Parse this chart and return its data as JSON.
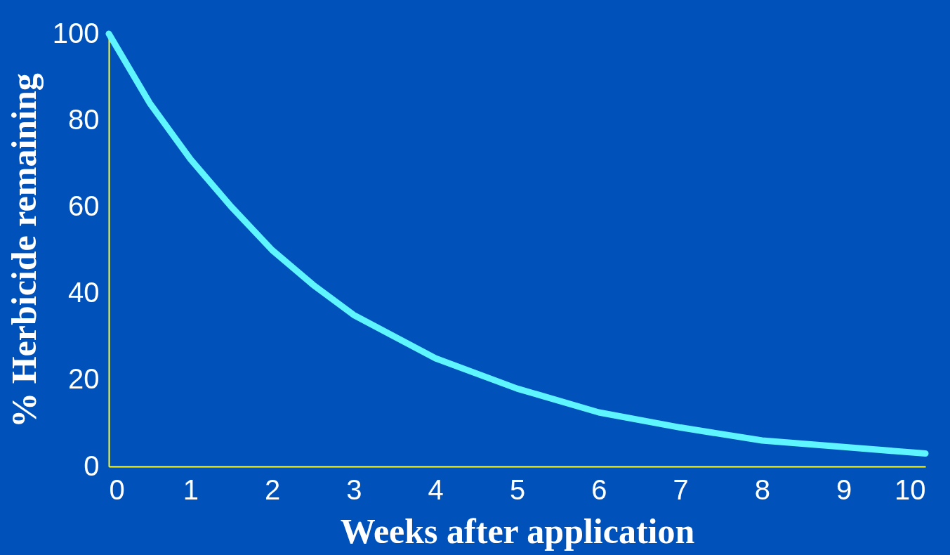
{
  "chart_data": {
    "type": "line",
    "xlabel": "Weeks after application",
    "ylabel": "% Herbicide remaining",
    "x": [
      0,
      0.5,
      1,
      1.5,
      2,
      2.5,
      3,
      3.5,
      4,
      5,
      6,
      7,
      8,
      9,
      10
    ],
    "series": [
      {
        "color": "#5ff5ff",
        "values": [
          100,
          84,
          71,
          60,
          50,
          42,
          35,
          30,
          25,
          18,
          12.5,
          9,
          6,
          4.5,
          3
        ]
      }
    ],
    "xlim": [
      0,
      10
    ],
    "xticks": [
      0,
      1,
      2,
      3,
      4,
      5,
      6,
      7,
      8,
      9,
      10
    ],
    "ylim": [
      0,
      100
    ],
    "yticks": [
      0,
      20,
      40,
      60,
      80,
      100
    ],
    "grid": false,
    "marker": "none",
    "line_style": "solid"
  }
}
